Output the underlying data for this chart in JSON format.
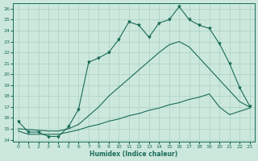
{
  "xlabel": "Humidex (Indice chaleur)",
  "bg_color": "#cce8dc",
  "line_color": "#1a6b5a",
  "xlim": [
    -0.5,
    23.5
  ],
  "ylim": [
    13.8,
    26.5
  ],
  "xticks": [
    0,
    1,
    2,
    3,
    4,
    5,
    6,
    7,
    8,
    9,
    10,
    11,
    12,
    13,
    14,
    15,
    16,
    17,
    18,
    19,
    20,
    21,
    22,
    23
  ],
  "yticks": [
    14,
    15,
    16,
    17,
    18,
    19,
    20,
    21,
    22,
    23,
    24,
    25,
    26
  ],
  "grid_color": "#a8d0c0",
  "c1_x": [
    0,
    1,
    2,
    3,
    4,
    5,
    6,
    7,
    8,
    9,
    10,
    11,
    12,
    13,
    14,
    15,
    16,
    17,
    18,
    19,
    20,
    21,
    22,
    23
  ],
  "c1_y": [
    15.7,
    14.7,
    14.7,
    14.3,
    14.3,
    15.2,
    16.8,
    21.1,
    21.5,
    22.0,
    23.2,
    24.8,
    24.5,
    23.4,
    24.7,
    25.0,
    26.2,
    25.0,
    24.5,
    24.2,
    22.8,
    21.0,
    18.8,
    17.1
  ],
  "c2_x": [
    0,
    3,
    4,
    5,
    6,
    7,
    8,
    9,
    10,
    11,
    12,
    13,
    14,
    15,
    16,
    17,
    18,
    19,
    20,
    21,
    22,
    23
  ],
  "c2_y": [
    15.0,
    14.8,
    14.8,
    15.0,
    15.4,
    16.2,
    17.0,
    18.0,
    18.8,
    19.6,
    20.4,
    21.2,
    22.0,
    22.7,
    23.0,
    22.5,
    21.5,
    20.5,
    19.5,
    18.5,
    17.5,
    17.0
  ],
  "c3_x": [
    0,
    1,
    2,
    3,
    4,
    5,
    6,
    7,
    8,
    9,
    10,
    11,
    12,
    13,
    14,
    15,
    16,
    17,
    18,
    19,
    20,
    21,
    22,
    23
  ],
  "c3_y": [
    14.8,
    14.5,
    14.5,
    14.5,
    14.5,
    14.7,
    14.9,
    15.2,
    15.4,
    15.7,
    15.9,
    16.2,
    16.4,
    16.7,
    16.9,
    17.2,
    17.4,
    17.7,
    17.9,
    18.2,
    17.0,
    16.3,
    16.6,
    16.9
  ]
}
